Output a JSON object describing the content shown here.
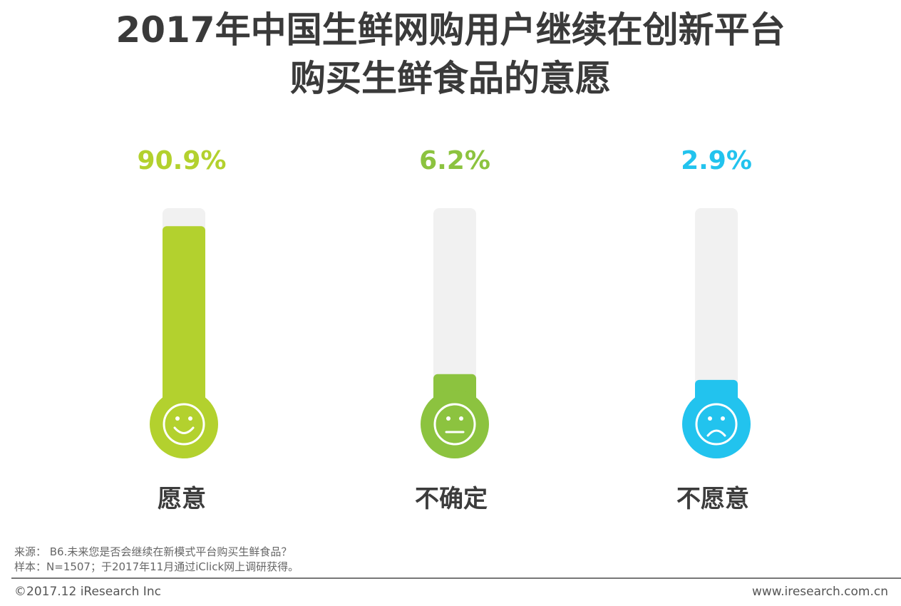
{
  "title_line1": "2017年中国生鲜网购用户继续在创新平台",
  "title_line2": "购买生鲜食品的意愿",
  "chart_data": {
    "type": "bar",
    "categories": [
      "愿意",
      "不确定",
      "不愿意"
    ],
    "values": [
      90.9,
      6.2,
      2.9
    ],
    "value_labels": [
      "90.9%",
      "6.2%",
      "2.9%"
    ],
    "colors": [
      "#b3d12e",
      "#8cc33f",
      "#22c3ee"
    ],
    "icons": [
      "smile-face-icon",
      "neutral-face-icon",
      "sad-face-icon"
    ],
    "ylim": [
      0,
      100
    ]
  },
  "source": "来源： B6.未来您是否会继续在新模式平台购买生鲜食品？",
  "sample": "样本：N=1507；于2017年11月通过iClick网上调研获得。",
  "copyright": "©2017.12 iResearch Inc",
  "website": "www.iresearch.com.cn"
}
